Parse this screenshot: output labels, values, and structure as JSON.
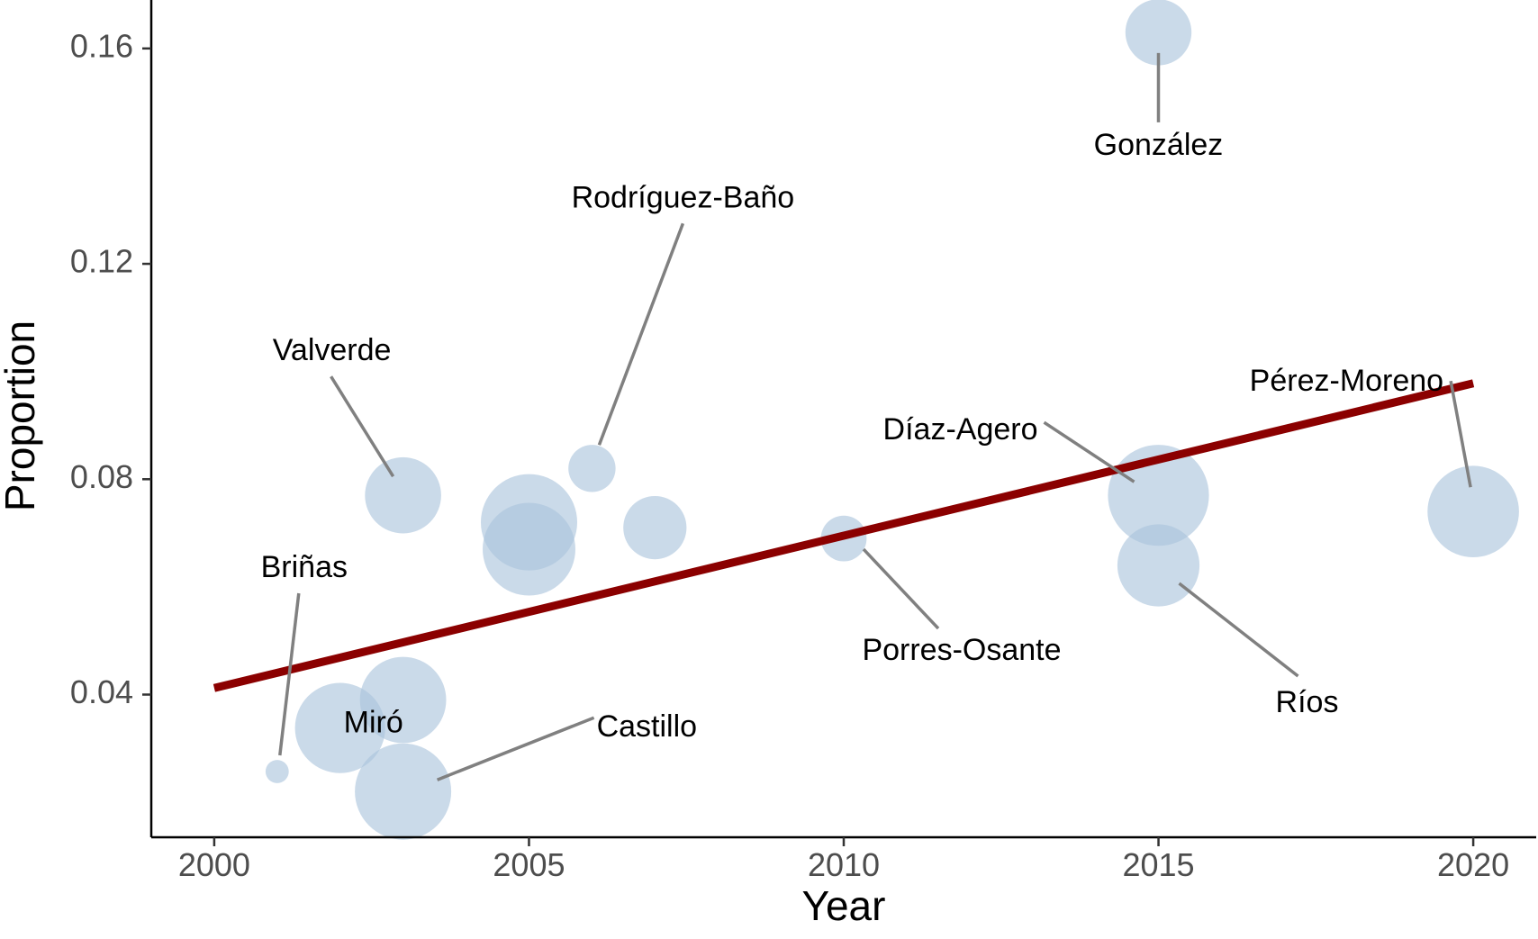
{
  "chart_data": {
    "type": "scatter",
    "title": "",
    "xlabel": "Year",
    "ylabel": "Proportion",
    "xlim": [
      1999.0,
      2021.0
    ],
    "ylim": [
      0.0135,
      0.169
    ],
    "x_ticks": [
      2000,
      2005,
      2010,
      2015,
      2020
    ],
    "x_tick_labels": [
      "2000",
      "2005",
      "2010",
      "2015",
      "2020"
    ],
    "y_ticks": [
      0.04,
      0.08,
      0.12,
      0.16
    ],
    "y_tick_labels": [
      "0.04",
      "0.08",
      "0.12",
      "0.16"
    ],
    "grid": false,
    "legend": "none",
    "colors": {
      "point": "#a9c3dc",
      "trend": "#8b0000",
      "leader": "#808080",
      "axis": "#000000"
    },
    "points": [
      {
        "label": "Briñas",
        "x": 2001.0,
        "y": 0.0257,
        "size": 0.015
      },
      {
        "label": "Miró",
        "x": 2002.0,
        "y": 0.0338,
        "size": 0.62
      },
      {
        "label": "",
        "x": 2003.0,
        "y": 0.039,
        "size": 0.56
      },
      {
        "label": "Castillo",
        "x": 2003.0,
        "y": 0.022,
        "size": 0.72
      },
      {
        "label": "Valverde",
        "x": 2003.0,
        "y": 0.077,
        "size": 0.42
      },
      {
        "label": "",
        "x": 2005.0,
        "y": 0.072,
        "size": 0.72
      },
      {
        "label": "",
        "x": 2005.0,
        "y": 0.067,
        "size": 0.66
      },
      {
        "label": "Rodríguez-Baño",
        "x": 2006.0,
        "y": 0.082,
        "size": 0.13
      },
      {
        "label": "",
        "x": 2007.0,
        "y": 0.071,
        "size": 0.27
      },
      {
        "label": "Porres-Osante",
        "x": 2010.0,
        "y": 0.069,
        "size": 0.12
      },
      {
        "label": "González",
        "x": 2015.0,
        "y": 0.163,
        "size": 0.3
      },
      {
        "label": "Díaz-Agero",
        "x": 2015.0,
        "y": 0.077,
        "size": 0.8
      },
      {
        "label": "Ríos",
        "x": 2015.0,
        "y": 0.064,
        "size": 0.5
      },
      {
        "label": "Pérez-Moreno",
        "x": 2020.0,
        "y": 0.074,
        "size": 0.64
      }
    ],
    "trend_line": {
      "x": [
        2000,
        2020
      ],
      "y": [
        0.0412,
        0.0978
      ]
    }
  }
}
